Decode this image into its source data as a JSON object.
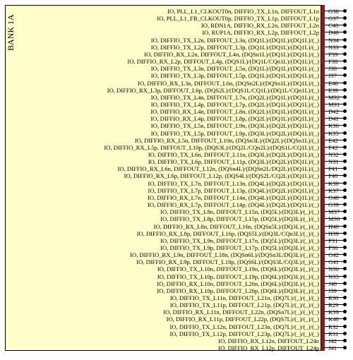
{
  "bank_title": "BANK 1A",
  "colors": {
    "box_fill": "#ffffcc",
    "pin_bar": "#8b1a1a",
    "text": "#000000"
  },
  "pins": [
    {
      "signal": "IO, PLL_L1_CLKOUT0n, DIFFIO_TX_L1n, DIFFOUT_L1n",
      "pin": "G38"
    },
    {
      "signal": "IO, PLL_L1_FB_CLKOUT0p, DIFFIO_TX_L1p, DIFFOUT_L1p",
      "pin": "G37"
    },
    {
      "signal": "IO, RDN1A, DIFFIO_RX_L2n, DIFFOUT_L2n",
      "pin": "C40"
    },
    {
      "signal": "IO, RUP1A, DIFFIO_RX_L2p, DIFFOUT_L2p",
      "pin": "D40"
    },
    {
      "signal": "IO, DIFFIO_TX_L2n, DIFFOUT_L3n, (DQ1L)/(DQ1L)/(DQ1L)/(_)",
      "pin": "N34"
    },
    {
      "signal": "IO, DIFFIO_TX_L2p, DIFFOUT_L3p, (DQ1L)/(DQ1L)/(DQ1L)/(_)",
      "pin": "N33"
    },
    {
      "signal": "IO, DIFFIO_RX_L2n, DIFFOUT_L4n, (DQSn1L)/(DQ1L)/(DQ1L)/(_)",
      "pin": "F39"
    },
    {
      "signal": "IO, DIFFIO_RX_L2p, DIFFOUT_L4p, (DQS1L)/(DQ1L/CQn1L)/(DQ1L)/(_)",
      "pin": "F38"
    },
    {
      "signal": "IO, DIFFIO_TX_L3n, DIFFOUT_L5n, (DQ1L)/(DQ1L)/(DQ1L)/(_)",
      "pin": "J38"
    },
    {
      "signal": "IO, DIFFIO_TX_L3p, DIFFOUT_L5p, (DQ1L)/(DQ1L)/(DQ1L)/(_)",
      "pin": "J37"
    },
    {
      "signal": "IO, DIFFIO_RX_L3n, DIFFOUT_L6n, (DQSn2L)/(DQSn1L)/(DQ1L)/(_)",
      "pin": "E40"
    },
    {
      "signal": "IO, DIFFIO_RX_L3p, DIFFOUT_L6p, (DQS2L)/(DQS1L/CQ1L)/(DQ1L/CQn1L)/(_)",
      "pin": "E39"
    },
    {
      "signal": "IO, DIFFIO_TX_L4n, DIFFOUT_L7n, (DQ2L)/(DQ1L)/(DQ1L)/(_)",
      "pin": "M32"
    },
    {
      "signal": "IO, DIFFIO_TX_L4p, DIFFOUT_L7p, (DQ2L)/(DQ1L)/(DQ1L)/(_)",
      "pin": "M31"
    },
    {
      "signal": "IO, DIFFIO_RX_L4n, DIFFOUT_L8n, (DQ2L)/(DQ1L)/(DQ1L)/(_)",
      "pin": "D42"
    },
    {
      "signal": "IO, DIFFIO_RX_L4p, DIFFOUT_L8p, (DQ2L)/(DQ1L)/(DQ1L)/(_)",
      "pin": "D41"
    },
    {
      "signal": "IO, DIFFIO_TX_L5n, DIFFOUT_L9n, (DQ3L)/(DQ2L)/(DQ1L)/(_)",
      "pin": "K36"
    },
    {
      "signal": "IO, DIFFIO_TX_L5p, DIFFOUT_L9p, (DQ3L)/(DQ2L)/(DQ1L)/(_)",
      "pin": "K35"
    },
    {
      "signal": "IO, DIFFIO_RX_L5n, DIFFOUT_L10n, (DQSn3L)/(DQ2L)/(DQSn1L)/(_)",
      "pin": "E42"
    },
    {
      "signal": "IO, DIFFIO_RX_L5p, DIFFOUT_L10p, (DQS3L)/(DQ2L/CQn2L)/(DQS1L/CQ1L)/(_)",
      "pin": "F42"
    },
    {
      "signal": "IO, DIFFIO_TX_L6n, DIFFOUT_L11n, (DQ3L)/(DQ2L)/(DQ1L)/(_)",
      "pin": "N32"
    },
    {
      "signal": "IO, DIFFIO_TX_L6p, DIFFOUT_L11p, (DQ3L)/(DQ2L)/(DQ1L)/(_)",
      "pin": "N31"
    },
    {
      "signal": "IO, DIFFIO_RX_L6n, DIFFOUT_L12n, (DQSn4L)/(DQSn2L/DQ2L)/(DQ1L)/(_)",
      "pin": "F41"
    },
    {
      "signal": "IO, DIFFIO_RX_L6p, DIFFOUT_L12p, (DQS4L)/(DQS2L/CQ2L)/(DQ1L)/(_)",
      "pin": "F40"
    },
    {
      "signal": "IO, DIFFIO_TX_L7n, DIFFOUT_L13n, (DQ4L)/(DQ2L)/(DQ1L)/(_)",
      "pin": "K38"
    },
    {
      "signal": "IO, DIFFIO_TX_L7p, DIFFOUT_L13p, (DQ4L)/(DQ2L)/(DQ1L)/(_)",
      "pin": "K37"
    },
    {
      "signal": "IO, DIFFIO_RX_L7n, DIFFOUT_L14n, (DQ4L)/(DQ2L)/(DQ1L)/(_)",
      "pin": "G40"
    },
    {
      "signal": "IO, DIFFIO_RX_L7p, DIFFOUT_L14p, (DQ4L)/(DQ2L)/(DQ1L)/(_)",
      "pin": "G39"
    },
    {
      "signal": "IO, DIFFIO_TX_L8n, DIFFOUT_L15n, (DQ5L)/(DQ3L)/(_)/(_)",
      "pin": "M37"
    },
    {
      "signal": "IO, DIFFIO_TX_L8p, DIFFOUT_L15p, (DQ5L)/(DQ3L)/(_)/(_)",
      "pin": "M36"
    },
    {
      "signal": "IO, DIFFIO_RX_L8n, DIFFOUT_L16n, (DQSn5L)/(DQ3L)/(_)/(_)",
      "pin": "H40"
    },
    {
      "signal": "IO, DIFFIO_RX_L8p, DIFFOUT_L16p, (DQS5L)/(DQ3L/CQn3L)/(_)/(_)",
      "pin": "H39"
    },
    {
      "signal": "IO, DIFFIO_TX_L9n, DIFFOUT_L17n, (DQ5L)/(DQ3L)/(_)/(_)",
      "pin": "P31"
    },
    {
      "signal": "IO, DIFFIO_TX_L9p, DIFFOUT_L17p, (DQ5L)/(DQ3L)/(_)/(_)",
      "pin": "P30"
    },
    {
      "signal": "IO, DIFFIO_RX_L9n, DIFFOUT_L18n, (DQSn6L)/(DQSn3L/DQ3L)/(_)/(_)",
      "pin": "G42"
    },
    {
      "signal": "IO, DIFFIO_RX_L9p, DIFFOUT_L18p, (DQS6L)/(DQS3L/CQ3L)/(_)/(_)",
      "pin": "G41"
    },
    {
      "signal": "IO, DIFFIO_TX_L10n, DIFFOUT_L19n, (DQ6L)/(DQ3L)/(_)/(_)",
      "pin": "N36"
    },
    {
      "signal": "IO, DIFFIO_TX_L10p, DIFFOUT_L19p, (DQ6L)/(DQ3L)/(_)/(_)",
      "pin": "N35"
    },
    {
      "signal": "IO, DIFFIO_RX_L10n, DIFFOUT_L20n, (DQ6L)/(DQ3L)/(_)/(_)",
      "pin": "J40"
    },
    {
      "signal": "IO, DIFFIO_RX_L10p, DIFFOUT_L20p, (DQ6L)/(DQ3L)/(_)/(_)",
      "pin": "J39"
    },
    {
      "signal": "IO, DIFFIO_TX_L11n, DIFFOUT_L21n, (DQ7L)/(_)/(_)/(_)",
      "pin": "R30"
    },
    {
      "signal": "IO, DIFFIO_TX_L11p, DIFFOUT_L21p, (DQ7L)/(_)/(_)/(_)",
      "pin": "R29"
    },
    {
      "signal": "IO, DIFFIO_RX_L11n, DIFFOUT_L22n, (DQSn7L)/(_)/(_)/(_)",
      "pin": "K39"
    },
    {
      "signal": "IO, DIFFIO_RX_L11p, DIFFOUT_L22p, (DQS7L)/(_)/(_)/(_)",
      "pin": "K40"
    },
    {
      "signal": "IO, DIFFIO_TX_L12n, DIFFOUT_L23n, (DQ7L)/(_)/(_)/(_)",
      "pin": "R32"
    },
    {
      "signal": "IO, DIFFIO_TX_L12p, DIFFOUT_L23p, (DQ7L)/(_)/(_)/(_)",
      "pin": "R31"
    },
    {
      "signal": "IO, DIFFIO_RX_L12n, DIFFOUT_L24n",
      "pin": "J42"
    },
    {
      "signal": "IO, DIFFIO_RX_L12p, DIFFOUT_L24p",
      "pin": "J41"
    }
  ]
}
